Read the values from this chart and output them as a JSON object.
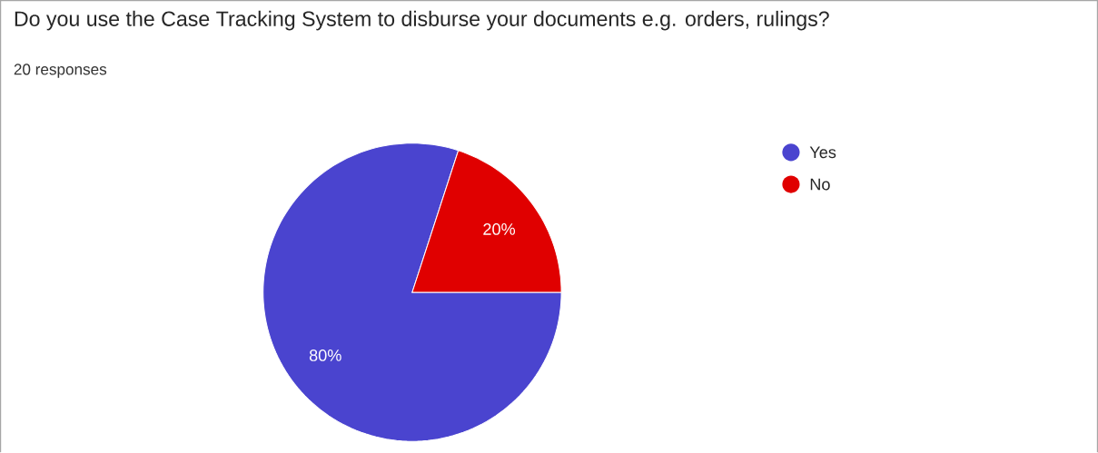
{
  "chart_data": {
    "type": "pie",
    "title": "Do you use the Case Tracking System to disburse your documents e.g. orders, rulings?",
    "subtitle": "20 responses",
    "categories": [
      "Yes",
      "No"
    ],
    "values": [
      80,
      20
    ],
    "value_labels": [
      "80%",
      "20%"
    ],
    "colors": [
      "#4a44cf",
      "#e00000"
    ],
    "legend": "top right"
  }
}
